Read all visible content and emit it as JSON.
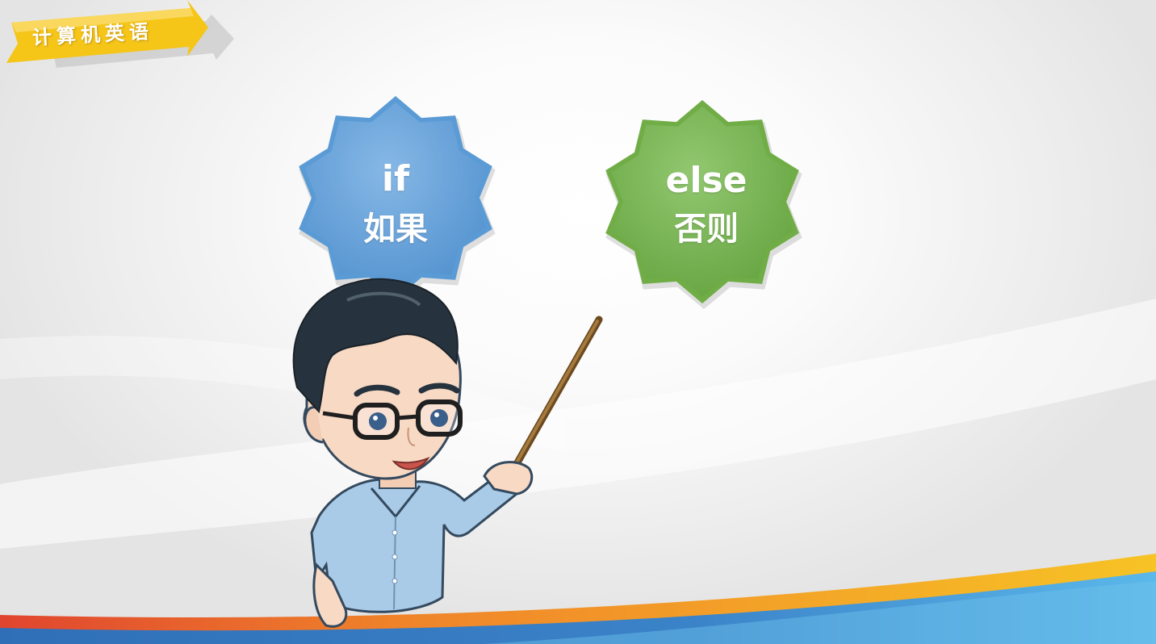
{
  "section_tag": {
    "label": "计算机英语",
    "color": "#f5c518"
  },
  "vocabulary": [
    {
      "english": "if",
      "chinese": "如果",
      "badge_color": "#5b9bd5",
      "badge_highlight": "#7fb3e3"
    },
    {
      "english": "else",
      "chinese": "否则",
      "badge_color": "#70ad47",
      "badge_highlight": "#8cc26a"
    }
  ],
  "colors": {
    "background": "#f4f4f4",
    "wave_orange": "#f29a21",
    "wave_red": "#e0452f",
    "wave_yellow": "#f7c325",
    "wave_blue": "#3b83c9",
    "wave_light_blue": "#6ec3ec"
  }
}
